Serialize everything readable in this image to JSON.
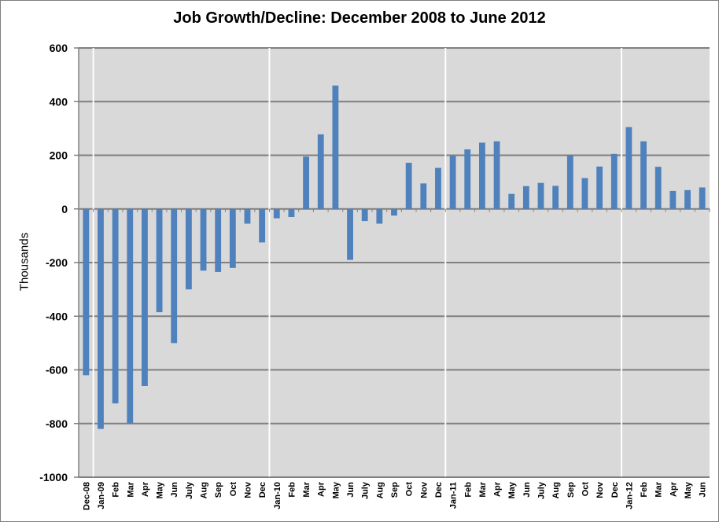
{
  "chart_data": {
    "type": "bar",
    "title": "Job Growth/Decline: December 2008 to June 2012",
    "xlabel": "",
    "ylabel": "Thousands",
    "ylim": [
      -1000,
      600
    ],
    "yticks": [
      600,
      400,
      200,
      0,
      -200,
      -400,
      -600,
      -800,
      -1000
    ],
    "grid": true,
    "legend": "none",
    "colors": {
      "bar": "#4f81bd",
      "plot_bg": "#d9d9d9",
      "gridline": "#808080",
      "year_divider": "#ffffff"
    },
    "categories": [
      "Dec-08",
      "Jan-09",
      "Feb",
      "Mar",
      "Apr",
      "May",
      "Jun",
      "July",
      "Aug",
      "Sep",
      "Oct",
      "Nov",
      "Dec",
      "Jan-10",
      "Feb",
      "Mar",
      "Apr",
      "May",
      "Jun",
      "July",
      "Aug",
      "Sep",
      "Oct",
      "Nov",
      "Dec",
      "Jan-11",
      "Feb",
      "Mar",
      "Apr",
      "May",
      "Jun",
      "July",
      "Aug",
      "Sep",
      "Oct",
      "Nov",
      "Dec",
      "Jan-12",
      "Feb",
      "Mar",
      "Apr",
      "May",
      "Jun"
    ],
    "values": [
      -620,
      -820,
      -725,
      -800,
      -660,
      -385,
      -500,
      -300,
      -230,
      -235,
      -220,
      -55,
      -125,
      -35,
      -30,
      195,
      278,
      460,
      -190,
      -45,
      -55,
      -25,
      172,
      95,
      153,
      198,
      222,
      247,
      252,
      56,
      85,
      97,
      86,
      200,
      115,
      158,
      205,
      305,
      252,
      157,
      67,
      70,
      80
    ],
    "year_dividers_after": [
      "Dec-08",
      "Dec",
      "Dec",
      "Dec"
    ]
  }
}
